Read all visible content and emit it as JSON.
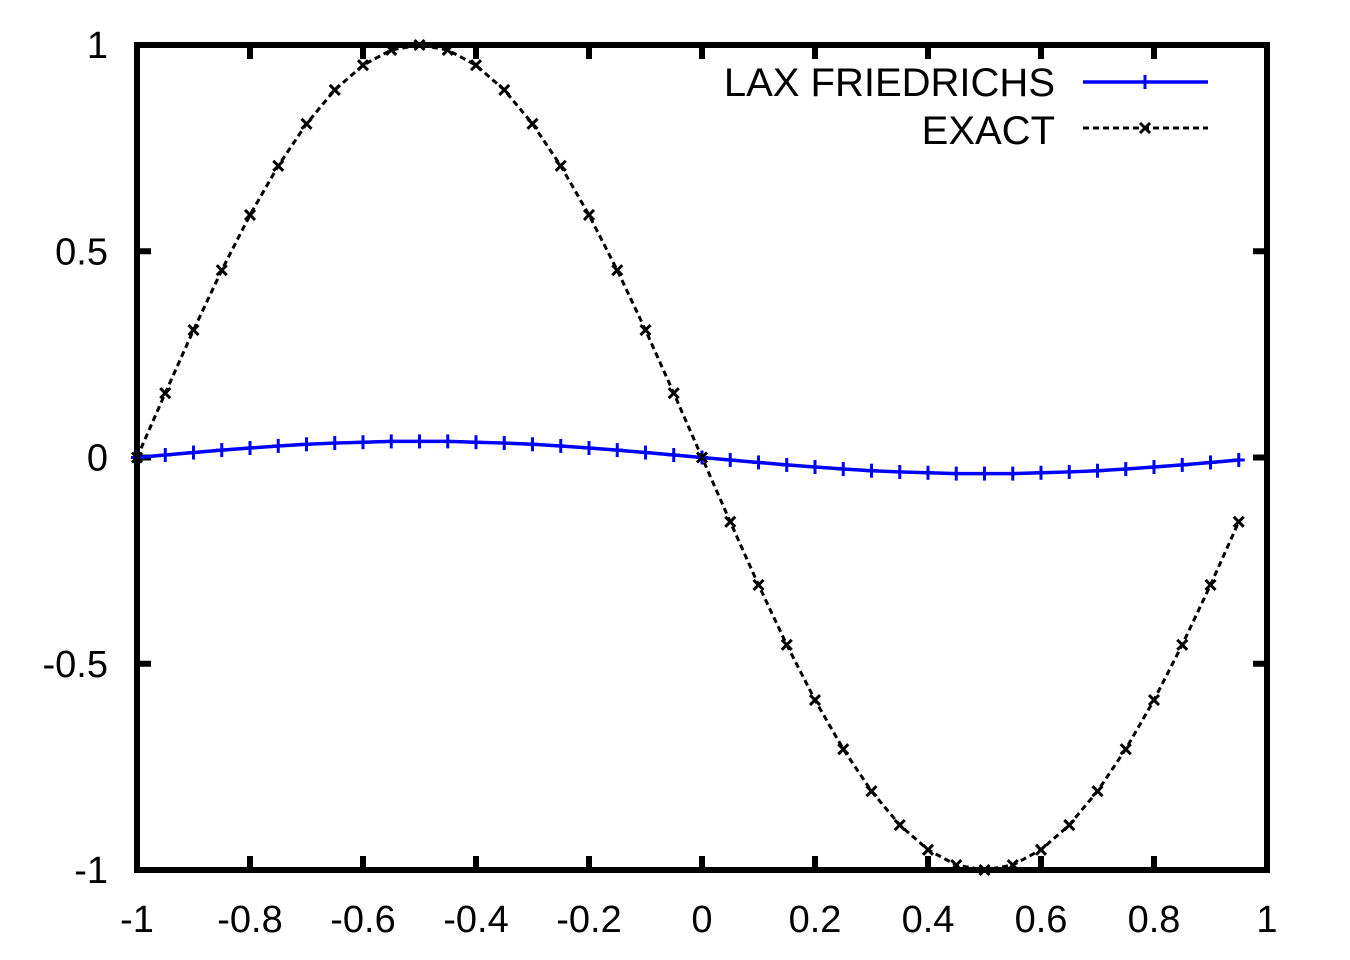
{
  "chart_data": {
    "type": "line",
    "title": "",
    "xlabel": "",
    "ylabel": "",
    "xlim": [
      -1,
      1
    ],
    "ylim": [
      -1,
      1
    ],
    "grid": false,
    "legend_position": "top-right",
    "x_ticks": [
      "-1",
      "-0.8",
      "-0.6",
      "-0.4",
      "-0.2",
      "0",
      "0.2",
      "0.4",
      "0.6",
      "0.8",
      "1"
    ],
    "y_ticks": [
      "1",
      "0.5",
      "0",
      "-0.5",
      "-1"
    ],
    "x": [
      -1,
      -0.95,
      -0.9,
      -0.85,
      -0.8,
      -0.75,
      -0.7,
      -0.65,
      -0.6,
      -0.55,
      -0.5,
      -0.45,
      -0.4,
      -0.35,
      -0.3,
      -0.25,
      -0.2,
      -0.15,
      -0.1,
      -0.05,
      0,
      0.05,
      0.1,
      0.15,
      0.2,
      0.25,
      0.3,
      0.35,
      0.4,
      0.45,
      0.5,
      0.55,
      0.6,
      0.65,
      0.7,
      0.75,
      0.8,
      0.85,
      0.9,
      0.95
    ],
    "series": [
      {
        "name": "LAX FRIEDRICHS",
        "color": "#0000ff",
        "style": "solid",
        "marker": "plus",
        "values": [
          0,
          0.006,
          0.012,
          0.018,
          0.023,
          0.028,
          0.032,
          0.035,
          0.037,
          0.039,
          0.039,
          0.039,
          0.037,
          0.035,
          0.032,
          0.028,
          0.023,
          0.018,
          0.012,
          0.006,
          0,
          -0.006,
          -0.012,
          -0.018,
          -0.023,
          -0.028,
          -0.032,
          -0.035,
          -0.037,
          -0.039,
          -0.039,
          -0.039,
          -0.037,
          -0.035,
          -0.032,
          -0.028,
          -0.023,
          -0.018,
          -0.012,
          -0.006
        ]
      },
      {
        "name": "EXACT",
        "color": "#000000",
        "style": "dashed",
        "marker": "x",
        "values": [
          0,
          0.156,
          0.309,
          0.454,
          0.588,
          0.707,
          0.809,
          0.891,
          0.951,
          0.988,
          1,
          0.988,
          0.951,
          0.891,
          0.809,
          0.707,
          0.588,
          0.454,
          0.309,
          0.156,
          0,
          -0.156,
          -0.309,
          -0.454,
          -0.588,
          -0.707,
          -0.809,
          -0.891,
          -0.951,
          -0.988,
          -1,
          -0.988,
          -0.951,
          -0.891,
          -0.809,
          -0.707,
          -0.588,
          -0.454,
          -0.309,
          -0.156
        ]
      }
    ]
  },
  "legend": {
    "items": [
      {
        "label": "LAX FRIEDRICHS"
      },
      {
        "label": "EXACT"
      }
    ]
  }
}
